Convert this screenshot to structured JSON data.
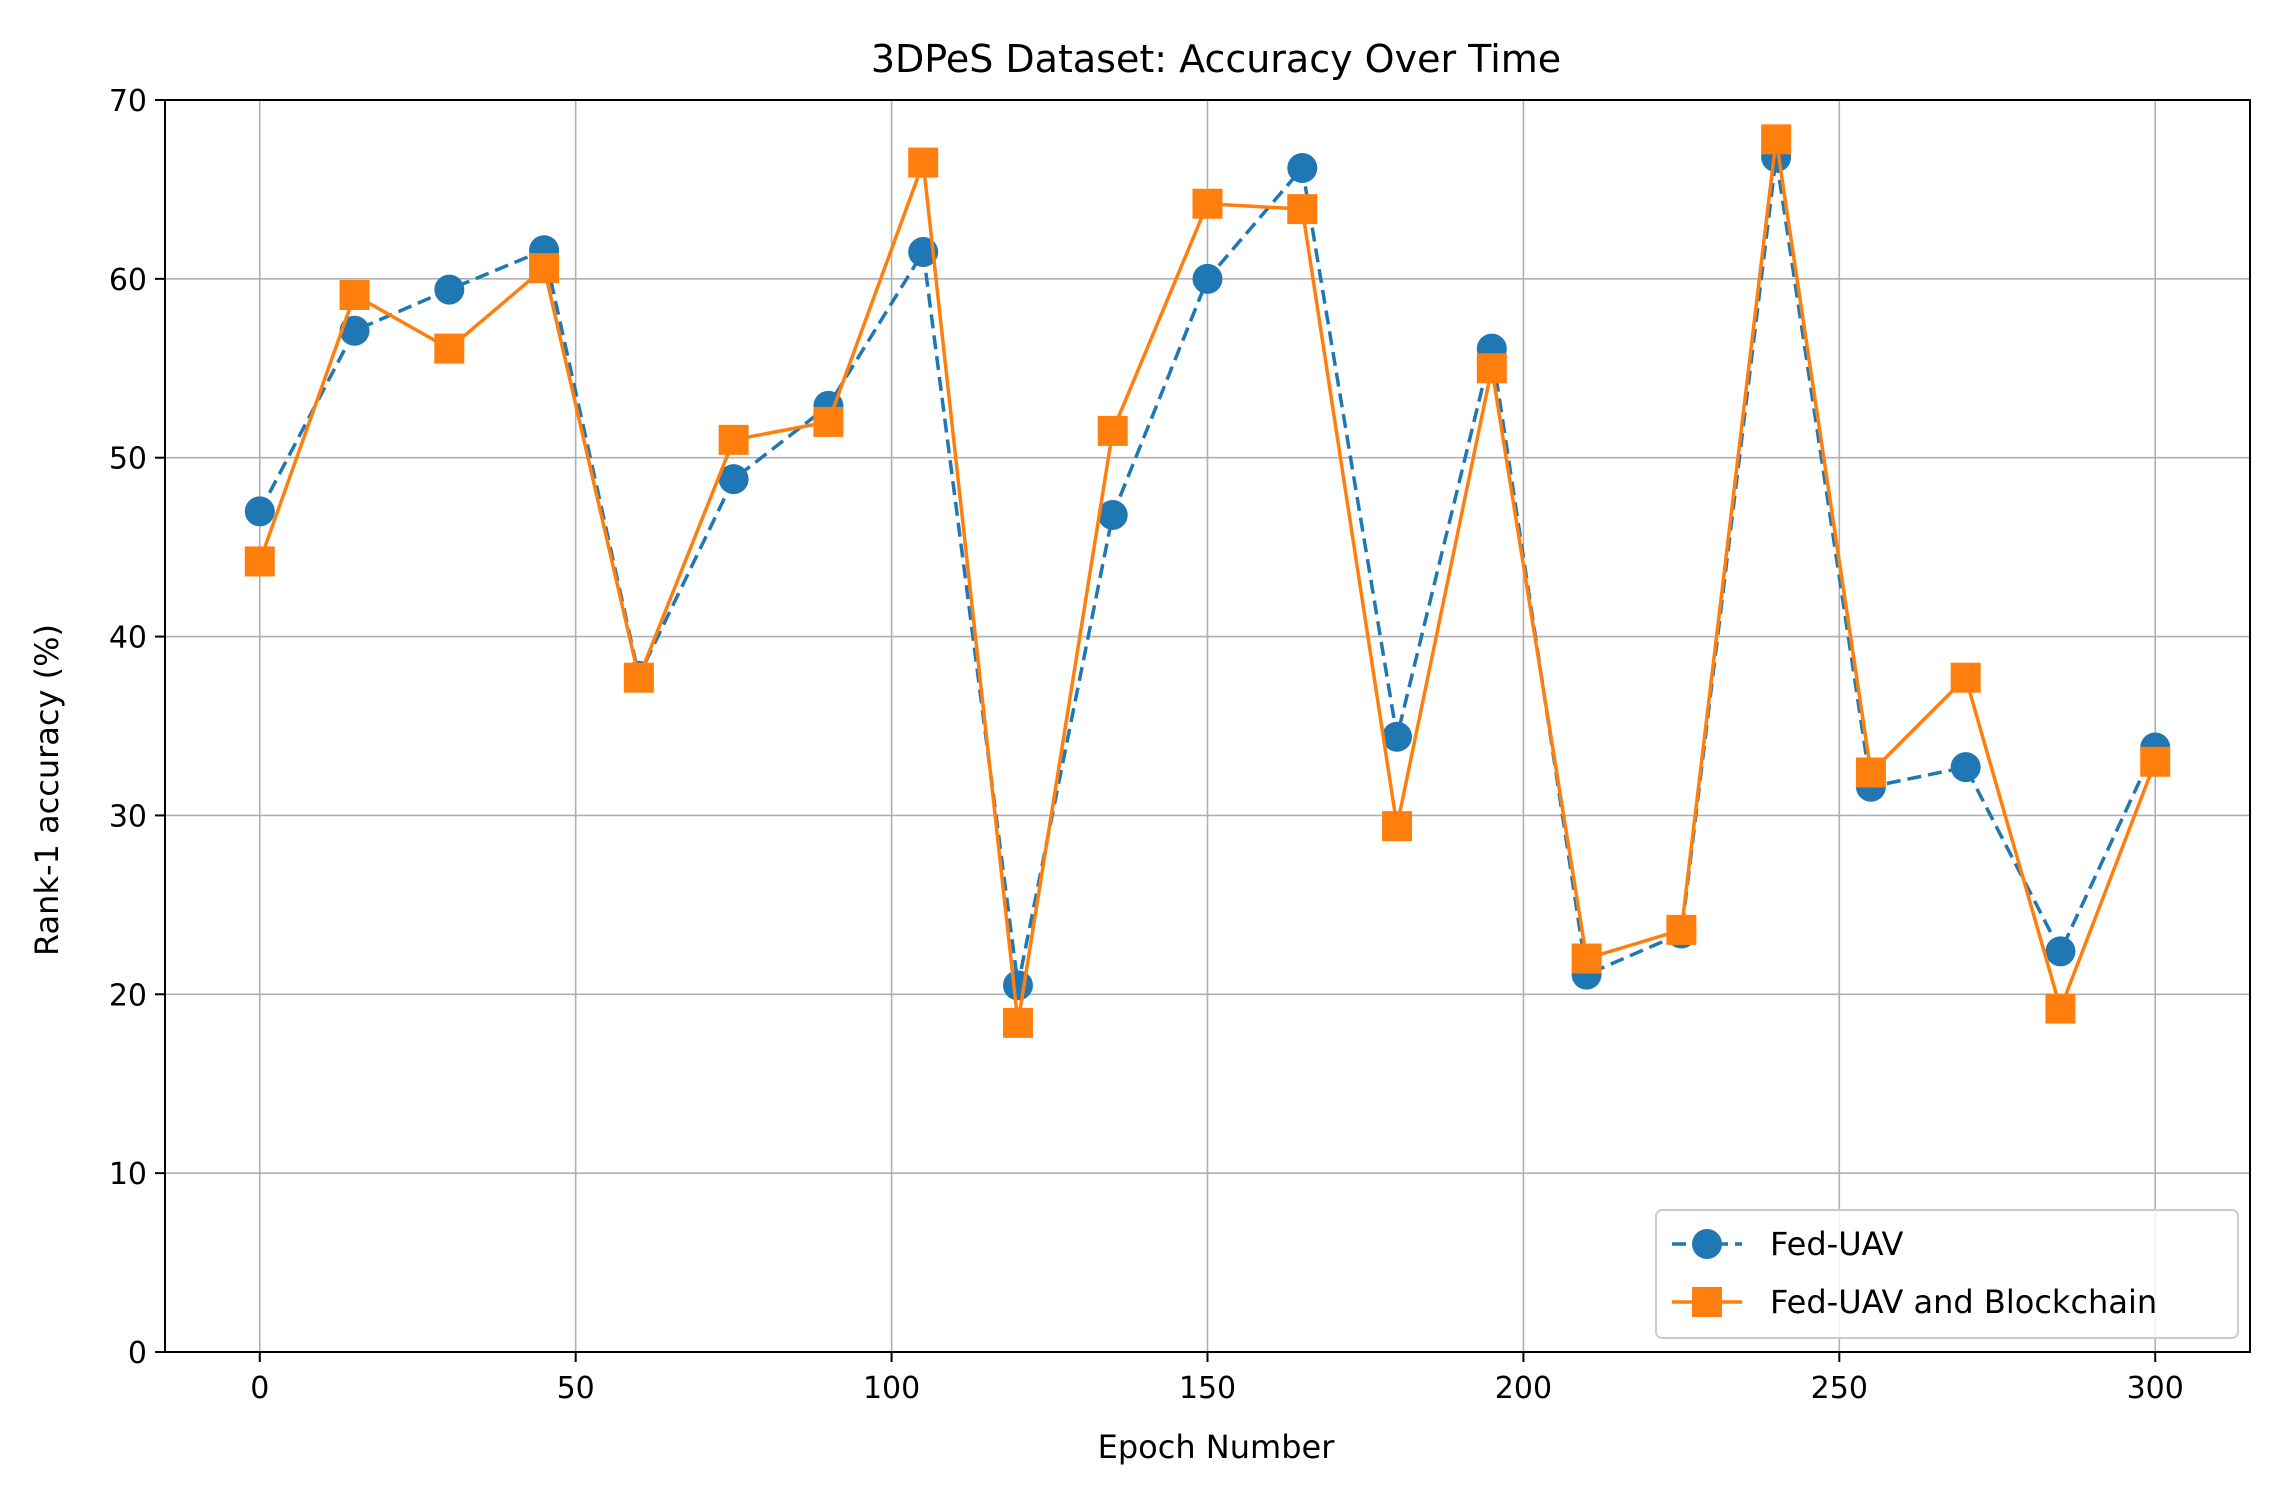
{
  "chart_data": {
    "type": "line",
    "title": "3DPeS Dataset: Accuracy Over Time",
    "xlabel": "Epoch Number",
    "ylabel": "Rank-1 accuracy (%)",
    "xlim": [
      -15,
      315
    ],
    "ylim": [
      0,
      70
    ],
    "xticks": [
      0,
      50,
      100,
      150,
      200,
      250,
      300
    ],
    "yticks": [
      0,
      10,
      20,
      30,
      40,
      50,
      60,
      70
    ],
    "grid": true,
    "legend_position": "lower-right",
    "x": [
      0,
      15,
      30,
      45,
      60,
      75,
      90,
      105,
      120,
      135,
      150,
      165,
      180,
      195,
      210,
      225,
      240,
      255,
      270,
      285,
      300
    ],
    "series": [
      {
        "name": "Fed-UAV",
        "color": "#1f77b4",
        "marker": "circle",
        "linestyle": "dashed",
        "values": [
          47.0,
          57.1,
          59.4,
          61.6,
          37.8,
          48.8,
          52.9,
          61.5,
          20.5,
          46.8,
          60.0,
          66.2,
          34.4,
          56.1,
          21.1,
          23.4,
          66.8,
          31.6,
          32.7,
          22.4,
          33.8
        ]
      },
      {
        "name": "Fed-UAV and Blockchain",
        "color": "#ff7f0e",
        "marker": "square",
        "linestyle": "solid",
        "values": [
          44.2,
          59.1,
          56.1,
          60.6,
          37.7,
          51.0,
          52.0,
          66.5,
          18.4,
          51.5,
          64.2,
          63.9,
          29.4,
          55.0,
          22.0,
          23.6,
          67.8,
          32.4,
          37.7,
          19.2,
          33.0
        ]
      }
    ]
  }
}
